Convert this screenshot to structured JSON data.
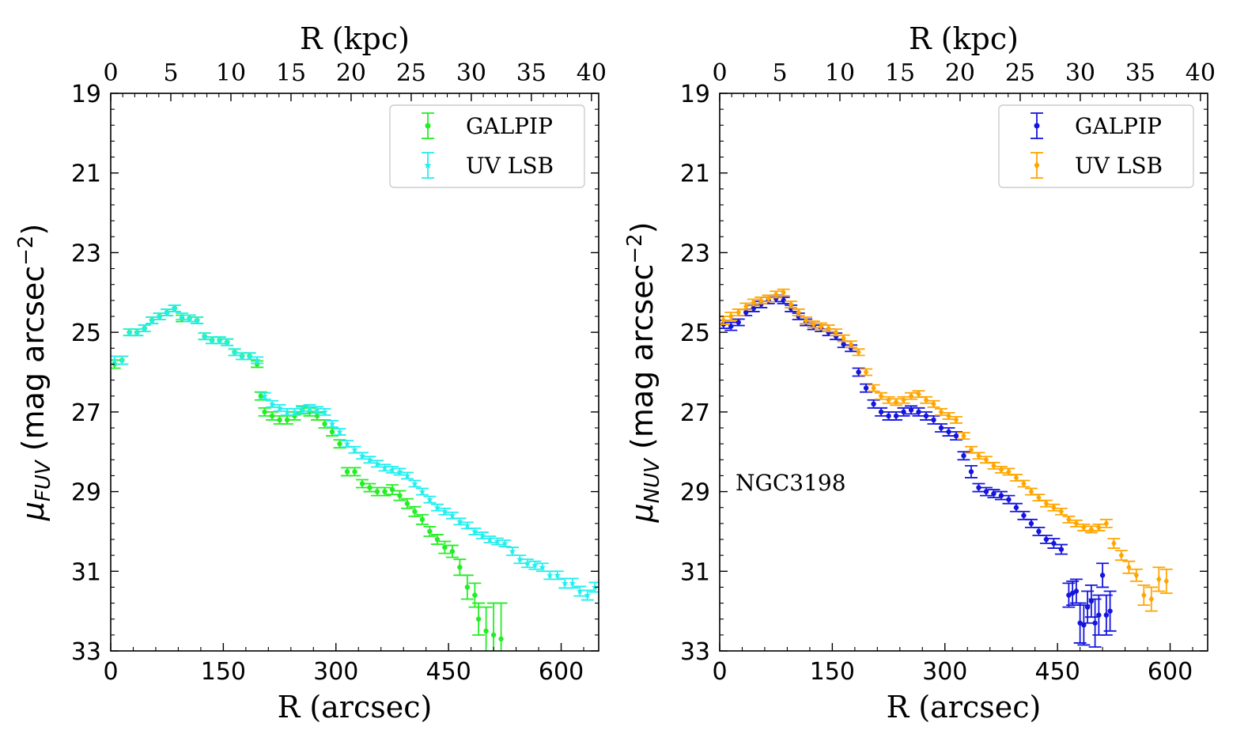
{
  "chart_data": [
    {
      "type": "scatter",
      "panel": "left",
      "xlabel": "R (arcsec)",
      "x2label": "R (kpc)",
      "ylabel_main": "μ",
      "ylabel_sub": "FUV",
      "ylabel_rest": " (mag arcsec",
      "ylabel_exp": "−2",
      "ylabel_close": ")",
      "xlim": [
        0,
        650
      ],
      "x2lim": [
        0,
        40.6
      ],
      "ylim": [
        33,
        19
      ],
      "x_ticks": [
        0,
        150,
        300,
        450,
        600
      ],
      "x_tick_labels": [
        "0",
        "150",
        "300",
        "450",
        "600"
      ],
      "x2_ticks": [
        0,
        5,
        10,
        15,
        20,
        25,
        30,
        35,
        40
      ],
      "x2_tick_labels": [
        "0",
        "5",
        "10",
        "15",
        "20",
        "25",
        "30",
        "35",
        "40"
      ],
      "y_ticks": [
        19,
        21,
        23,
        25,
        27,
        29,
        31,
        33
      ],
      "y_tick_labels": [
        "19",
        "21",
        "23",
        "25",
        "27",
        "29",
        "31",
        "33"
      ],
      "legend_position": "top-right",
      "annotation": "",
      "series": [
        {
          "name": "GALPIP",
          "color": "#22ee22",
          "marker": "circle",
          "x": [
            5,
            15,
            25,
            35,
            45,
            55,
            65,
            75,
            85,
            95,
            105,
            115,
            125,
            135,
            145,
            155,
            165,
            175,
            185,
            195,
            200,
            205,
            215,
            225,
            235,
            245,
            255,
            265,
            275,
            285,
            295,
            305,
            315,
            325,
            335,
            345,
            355,
            365,
            375,
            385,
            395,
            405,
            415,
            425,
            435,
            445,
            455,
            465,
            475,
            485,
            490,
            500,
            510,
            520
          ],
          "y": [
            25.8,
            25.7,
            25.0,
            25.0,
            24.9,
            24.7,
            24.6,
            24.5,
            24.4,
            24.65,
            24.65,
            24.7,
            25.1,
            25.2,
            25.2,
            25.25,
            25.5,
            25.6,
            25.6,
            25.8,
            26.6,
            27.0,
            27.1,
            27.2,
            27.2,
            27.1,
            26.95,
            27.0,
            27.1,
            27.3,
            27.5,
            27.8,
            28.5,
            28.5,
            28.8,
            28.9,
            29.0,
            29.0,
            28.95,
            29.1,
            29.3,
            29.5,
            29.7,
            30.0,
            30.2,
            30.4,
            30.5,
            30.9,
            31.4,
            31.6,
            32.2,
            32.5,
            32.6,
            32.7
          ],
          "err": [
            0.1,
            0.1,
            0.08,
            0.08,
            0.08,
            0.08,
            0.08,
            0.08,
            0.08,
            0.08,
            0.08,
            0.08,
            0.08,
            0.08,
            0.08,
            0.08,
            0.08,
            0.08,
            0.08,
            0.08,
            0.1,
            0.1,
            0.1,
            0.1,
            0.1,
            0.1,
            0.1,
            0.1,
            0.1,
            0.1,
            0.1,
            0.1,
            0.1,
            0.1,
            0.1,
            0.1,
            0.1,
            0.1,
            0.12,
            0.12,
            0.12,
            0.12,
            0.12,
            0.12,
            0.12,
            0.15,
            0.15,
            0.2,
            0.3,
            0.3,
            0.4,
            0.6,
            0.8,
            0.9
          ]
        },
        {
          "name": "UV LSB",
          "color": "#22eeee",
          "marker": "star",
          "x": [
            5,
            15,
            25,
            35,
            45,
            55,
            65,
            75,
            85,
            95,
            105,
            115,
            125,
            135,
            145,
            155,
            165,
            175,
            185,
            195,
            205,
            215,
            225,
            235,
            245,
            255,
            265,
            275,
            285,
            295,
            305,
            315,
            325,
            335,
            345,
            355,
            365,
            375,
            385,
            395,
            405,
            415,
            425,
            435,
            445,
            455,
            465,
            475,
            485,
            495,
            505,
            515,
            525,
            535,
            545,
            555,
            565,
            575,
            585,
            595,
            605,
            615,
            625,
            635,
            645
          ],
          "y": [
            25.7,
            25.7,
            25.0,
            25.0,
            24.9,
            24.7,
            24.6,
            24.5,
            24.4,
            24.6,
            24.65,
            24.7,
            25.1,
            25.2,
            25.2,
            25.25,
            25.5,
            25.6,
            25.6,
            25.7,
            26.6,
            26.8,
            26.9,
            27.0,
            27.0,
            26.95,
            26.9,
            26.95,
            27.0,
            27.3,
            27.5,
            27.8,
            27.95,
            28.1,
            28.2,
            28.3,
            28.4,
            28.45,
            28.5,
            28.6,
            28.8,
            29.0,
            29.2,
            29.4,
            29.5,
            29.6,
            29.75,
            29.85,
            30.0,
            30.1,
            30.2,
            30.25,
            30.3,
            30.5,
            30.7,
            30.8,
            30.85,
            30.9,
            31.1,
            31.1,
            31.3,
            31.3,
            31.5,
            31.6,
            31.4
          ],
          "err": [
            0.1,
            0.1,
            0.08,
            0.08,
            0.08,
            0.08,
            0.08,
            0.08,
            0.08,
            0.08,
            0.08,
            0.08,
            0.08,
            0.08,
            0.08,
            0.08,
            0.08,
            0.08,
            0.08,
            0.08,
            0.08,
            0.08,
            0.08,
            0.08,
            0.08,
            0.08,
            0.08,
            0.08,
            0.08,
            0.08,
            0.08,
            0.08,
            0.08,
            0.08,
            0.08,
            0.08,
            0.08,
            0.08,
            0.08,
            0.08,
            0.08,
            0.08,
            0.08,
            0.08,
            0.08,
            0.08,
            0.08,
            0.08,
            0.08,
            0.08,
            0.08,
            0.08,
            0.08,
            0.1,
            0.1,
            0.1,
            0.1,
            0.1,
            0.1,
            0.1,
            0.12,
            0.12,
            0.12,
            0.12,
            0.12
          ]
        }
      ]
    },
    {
      "type": "scatter",
      "panel": "right",
      "xlabel": "R (arcsec)",
      "x2label": "R (kpc)",
      "ylabel_main": "μ",
      "ylabel_sub": "NUV",
      "ylabel_rest": " (mag arcsec",
      "ylabel_exp": "−2",
      "ylabel_close": ")",
      "xlim": [
        0,
        650
      ],
      "x2lim": [
        0,
        40.6
      ],
      "ylim": [
        33,
        19
      ],
      "x_ticks": [
        0,
        150,
        300,
        450,
        600
      ],
      "x_tick_labels": [
        "0",
        "150",
        "300",
        "450",
        "600"
      ],
      "x2_ticks": [
        0,
        5,
        10,
        15,
        20,
        25,
        30,
        35,
        40
      ],
      "x2_tick_labels": [
        "0",
        "5",
        "10",
        "15",
        "20",
        "25",
        "30",
        "35",
        "40"
      ],
      "y_ticks": [
        19,
        21,
        23,
        25,
        27,
        29,
        31,
        33
      ],
      "y_tick_labels": [
        "19",
        "21",
        "23",
        "25",
        "27",
        "29",
        "31",
        "33"
      ],
      "legend_position": "top-right",
      "annotation": "NGC3198",
      "series": [
        {
          "name": "GALPIP",
          "color": "#1515dd",
          "marker": "circle",
          "x": [
            5,
            15,
            25,
            35,
            45,
            55,
            65,
            75,
            85,
            95,
            105,
            115,
            125,
            135,
            145,
            155,
            165,
            175,
            185,
            195,
            205,
            215,
            225,
            235,
            245,
            255,
            265,
            275,
            285,
            295,
            305,
            315,
            325,
            335,
            345,
            355,
            365,
            375,
            385,
            395,
            405,
            415,
            425,
            435,
            445,
            455,
            465,
            470,
            475,
            480,
            485,
            490,
            495,
            500,
            505,
            510,
            515,
            520
          ],
          "y": [
            24.8,
            24.85,
            24.75,
            24.5,
            24.4,
            24.3,
            24.2,
            24.15,
            24.2,
            24.4,
            24.6,
            24.75,
            24.85,
            24.9,
            25.0,
            25.1,
            25.3,
            25.4,
            26.0,
            26.4,
            26.8,
            27.0,
            27.1,
            27.1,
            27.0,
            26.95,
            27.0,
            27.1,
            27.2,
            27.4,
            27.5,
            27.6,
            28.1,
            28.5,
            28.9,
            29.0,
            29.05,
            29.1,
            29.2,
            29.4,
            29.6,
            29.8,
            30.0,
            30.2,
            30.3,
            30.45,
            31.6,
            31.55,
            31.5,
            32.3,
            32.35,
            31.9,
            31.75,
            32.3,
            32.1,
            31.1,
            32.1,
            32.0
          ],
          "err": [
            0.1,
            0.1,
            0.08,
            0.08,
            0.08,
            0.08,
            0.08,
            0.08,
            0.08,
            0.08,
            0.08,
            0.08,
            0.08,
            0.08,
            0.08,
            0.08,
            0.08,
            0.08,
            0.1,
            0.1,
            0.1,
            0.1,
            0.1,
            0.1,
            0.1,
            0.1,
            0.1,
            0.1,
            0.1,
            0.1,
            0.1,
            0.1,
            0.1,
            0.15,
            0.1,
            0.1,
            0.1,
            0.1,
            0.1,
            0.1,
            0.1,
            0.1,
            0.1,
            0.1,
            0.12,
            0.12,
            0.3,
            0.3,
            0.3,
            0.5,
            0.5,
            0.4,
            0.4,
            0.6,
            0.5,
            0.3,
            0.5,
            0.5
          ]
        },
        {
          "name": "UV LSB",
          "color": "#ffa500",
          "marker": "diamond",
          "x": [
            5,
            15,
            25,
            35,
            45,
            55,
            65,
            75,
            85,
            95,
            105,
            115,
            125,
            135,
            145,
            155,
            165,
            175,
            185,
            195,
            205,
            215,
            225,
            235,
            245,
            255,
            265,
            275,
            285,
            295,
            305,
            315,
            325,
            335,
            345,
            355,
            365,
            375,
            385,
            395,
            405,
            415,
            425,
            435,
            445,
            455,
            465,
            475,
            485,
            495,
            505,
            515,
            525,
            535,
            545,
            555,
            565,
            575,
            585,
            595
          ],
          "y": [
            24.7,
            24.6,
            24.5,
            24.35,
            24.25,
            24.2,
            24.15,
            24.05,
            24.0,
            24.3,
            24.5,
            24.7,
            24.8,
            24.85,
            24.9,
            25.0,
            25.15,
            25.3,
            25.5,
            26.0,
            26.4,
            26.6,
            26.7,
            26.75,
            26.7,
            26.6,
            26.55,
            26.7,
            26.8,
            27.0,
            27.1,
            27.2,
            27.6,
            27.95,
            28.1,
            28.2,
            28.35,
            28.45,
            28.5,
            28.65,
            28.8,
            29.0,
            29.15,
            29.3,
            29.4,
            29.5,
            29.7,
            29.8,
            29.9,
            29.95,
            29.9,
            29.8,
            30.3,
            30.6,
            30.9,
            31.1,
            31.6,
            31.7,
            31.2,
            31.25
          ],
          "err": [
            0.1,
            0.1,
            0.08,
            0.08,
            0.08,
            0.08,
            0.08,
            0.08,
            0.08,
            0.08,
            0.08,
            0.08,
            0.08,
            0.08,
            0.08,
            0.08,
            0.08,
            0.08,
            0.08,
            0.08,
            0.08,
            0.08,
            0.08,
            0.08,
            0.08,
            0.08,
            0.08,
            0.08,
            0.08,
            0.08,
            0.08,
            0.08,
            0.08,
            0.08,
            0.08,
            0.08,
            0.08,
            0.08,
            0.08,
            0.08,
            0.08,
            0.08,
            0.08,
            0.08,
            0.08,
            0.08,
            0.08,
            0.08,
            0.08,
            0.08,
            0.08,
            0.1,
            0.12,
            0.12,
            0.15,
            0.15,
            0.25,
            0.3,
            0.3,
            0.3
          ]
        }
      ]
    }
  ]
}
